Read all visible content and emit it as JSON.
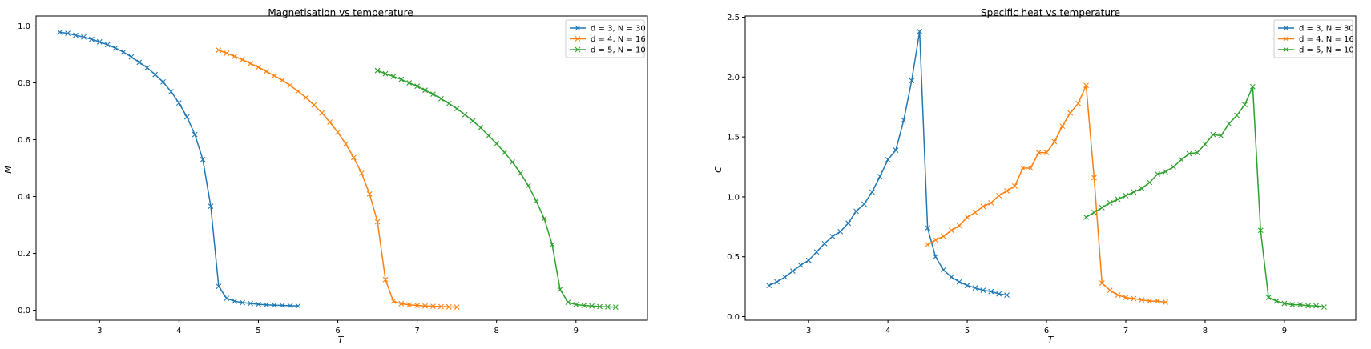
{
  "chart_data": [
    {
      "type": "line",
      "title": "Magnetisation vs temperature",
      "xlabel": "T",
      "ylabel": "M",
      "xlim": [
        2.2,
        9.9
      ],
      "ylim": [
        -0.035,
        1.035
      ],
      "xticks": [
        3,
        4,
        5,
        6,
        7,
        8,
        9
      ],
      "yticks": [
        0.0,
        0.2,
        0.4,
        0.6,
        0.8,
        1.0
      ],
      "xtick_labels": [
        "3",
        "4",
        "5",
        "6",
        "7",
        "8",
        "9"
      ],
      "ytick_labels": [
        "0.0",
        "0.2",
        "0.4",
        "0.6",
        "0.8",
        "1.0"
      ],
      "grid": false,
      "legend_position": "top-right",
      "marker": "x",
      "series": [
        {
          "name": "d = 3, N = 30",
          "color": "#1f77b4",
          "x": [
            2.5,
            2.6,
            2.7,
            2.8,
            2.9,
            3.0,
            3.1,
            3.2,
            3.3,
            3.4,
            3.5,
            3.6,
            3.7,
            3.8,
            3.9,
            4.0,
            4.1,
            4.2,
            4.3,
            4.4,
            4.5,
            4.6,
            4.7,
            4.8,
            4.9,
            5.0,
            5.1,
            5.2,
            5.3,
            5.4,
            5.5
          ],
          "y": [
            0.978,
            0.974,
            0.967,
            0.961,
            0.953,
            0.944,
            0.934,
            0.922,
            0.908,
            0.891,
            0.872,
            0.853,
            0.829,
            0.803,
            0.769,
            0.729,
            0.68,
            0.618,
            0.53,
            0.366,
            0.084,
            0.042,
            0.032,
            0.027,
            0.024,
            0.021,
            0.019,
            0.018,
            0.017,
            0.016,
            0.015
          ]
        },
        {
          "name": "d = 4, N = 16",
          "color": "#ff7f0e",
          "x": [
            4.5,
            4.6,
            4.7,
            4.8,
            4.9,
            5.0,
            5.1,
            5.2,
            5.3,
            5.4,
            5.5,
            5.6,
            5.7,
            5.8,
            5.9,
            6.0,
            6.1,
            6.2,
            6.3,
            6.4,
            6.5,
            6.6,
            6.7,
            6.8,
            6.9,
            7.0,
            7.1,
            7.2,
            7.3,
            7.4,
            7.5
          ],
          "y": [
            0.915,
            0.904,
            0.893,
            0.881,
            0.868,
            0.855,
            0.84,
            0.825,
            0.809,
            0.791,
            0.77,
            0.748,
            0.722,
            0.694,
            0.662,
            0.626,
            0.585,
            0.537,
            0.482,
            0.409,
            0.311,
            0.108,
            0.032,
            0.023,
            0.019,
            0.017,
            0.015,
            0.014,
            0.013,
            0.012,
            0.011
          ]
        },
        {
          "name": "d = 5, N = 10",
          "color": "#2ca02c",
          "x": [
            6.5,
            6.6,
            6.7,
            6.8,
            6.9,
            7.0,
            7.1,
            7.2,
            7.3,
            7.4,
            7.5,
            7.6,
            7.7,
            7.8,
            7.9,
            8.0,
            8.1,
            8.2,
            8.3,
            8.4,
            8.5,
            8.6,
            8.7,
            8.8,
            8.9,
            9.0,
            9.1,
            9.2,
            9.3,
            9.4,
            9.5
          ],
          "y": [
            0.843,
            0.832,
            0.822,
            0.812,
            0.8,
            0.788,
            0.774,
            0.76,
            0.744,
            0.727,
            0.709,
            0.688,
            0.666,
            0.642,
            0.614,
            0.586,
            0.555,
            0.521,
            0.482,
            0.438,
            0.384,
            0.322,
            0.231,
            0.073,
            0.028,
            0.02,
            0.017,
            0.015,
            0.013,
            0.012,
            0.011
          ]
        }
      ]
    },
    {
      "type": "line",
      "title": "Specific heat vs temperature",
      "xlabel": "T",
      "ylabel": "C",
      "xlim": [
        2.2,
        9.9
      ],
      "ylim": [
        -0.03,
        2.51
      ],
      "xticks": [
        3,
        4,
        5,
        6,
        7,
        8,
        9
      ],
      "yticks": [
        0.0,
        0.5,
        1.0,
        1.5,
        2.0,
        2.5
      ],
      "xtick_labels": [
        "3",
        "4",
        "5",
        "6",
        "7",
        "8",
        "9"
      ],
      "ytick_labels": [
        "0.0",
        "0.5",
        "1.0",
        "1.5",
        "2.0",
        "2.5"
      ],
      "grid": false,
      "legend_position": "top-right",
      "marker": "x",
      "series": [
        {
          "name": "d = 3, N = 30",
          "color": "#1f77b4",
          "x": [
            2.5,
            2.6,
            2.7,
            2.8,
            2.9,
            3.0,
            3.1,
            3.2,
            3.3,
            3.4,
            3.5,
            3.6,
            3.7,
            3.8,
            3.9,
            4.0,
            4.1,
            4.2,
            4.3,
            4.4,
            4.5,
            4.6,
            4.7,
            4.8,
            4.9,
            5.0,
            5.1,
            5.2,
            5.3,
            5.4,
            5.5
          ],
          "y": [
            0.26,
            0.29,
            0.33,
            0.38,
            0.43,
            0.47,
            0.54,
            0.61,
            0.67,
            0.71,
            0.78,
            0.88,
            0.94,
            1.04,
            1.17,
            1.31,
            1.39,
            1.64,
            1.97,
            2.38,
            0.74,
            0.5,
            0.39,
            0.33,
            0.29,
            0.26,
            0.24,
            0.22,
            0.21,
            0.19,
            0.18
          ]
        },
        {
          "name": "d = 4, N = 16",
          "color": "#ff7f0e",
          "x": [
            4.5,
            4.6,
            4.7,
            4.8,
            4.9,
            5.0,
            5.1,
            5.2,
            5.3,
            5.4,
            5.5,
            5.6,
            5.7,
            5.8,
            5.9,
            6.0,
            6.1,
            6.2,
            6.3,
            6.4,
            6.5,
            6.6,
            6.7,
            6.8,
            6.9,
            7.0,
            7.1,
            7.2,
            7.3,
            7.4,
            7.5
          ],
          "y": [
            0.6,
            0.64,
            0.67,
            0.72,
            0.76,
            0.83,
            0.87,
            0.92,
            0.95,
            1.01,
            1.05,
            1.09,
            1.24,
            1.24,
            1.37,
            1.37,
            1.46,
            1.59,
            1.7,
            1.78,
            1.93,
            1.16,
            0.28,
            0.22,
            0.18,
            0.16,
            0.15,
            0.14,
            0.13,
            0.13,
            0.12
          ]
        },
        {
          "name": "d = 5, N = 10",
          "color": "#2ca02c",
          "x": [
            6.5,
            6.6,
            6.7,
            6.8,
            6.9,
            7.0,
            7.1,
            7.2,
            7.3,
            7.4,
            7.5,
            7.6,
            7.7,
            7.8,
            7.9,
            8.0,
            8.1,
            8.2,
            8.3,
            8.4,
            8.5,
            8.6,
            8.7,
            8.8,
            8.9,
            9.0,
            9.1,
            9.2,
            9.3,
            9.4,
            9.5
          ],
          "y": [
            0.83,
            0.87,
            0.91,
            0.95,
            0.98,
            1.01,
            1.04,
            1.07,
            1.12,
            1.19,
            1.21,
            1.25,
            1.31,
            1.36,
            1.37,
            1.44,
            1.52,
            1.51,
            1.61,
            1.68,
            1.77,
            1.92,
            0.72,
            0.16,
            0.13,
            0.11,
            0.1,
            0.1,
            0.09,
            0.09,
            0.08
          ]
        }
      ]
    }
  ]
}
